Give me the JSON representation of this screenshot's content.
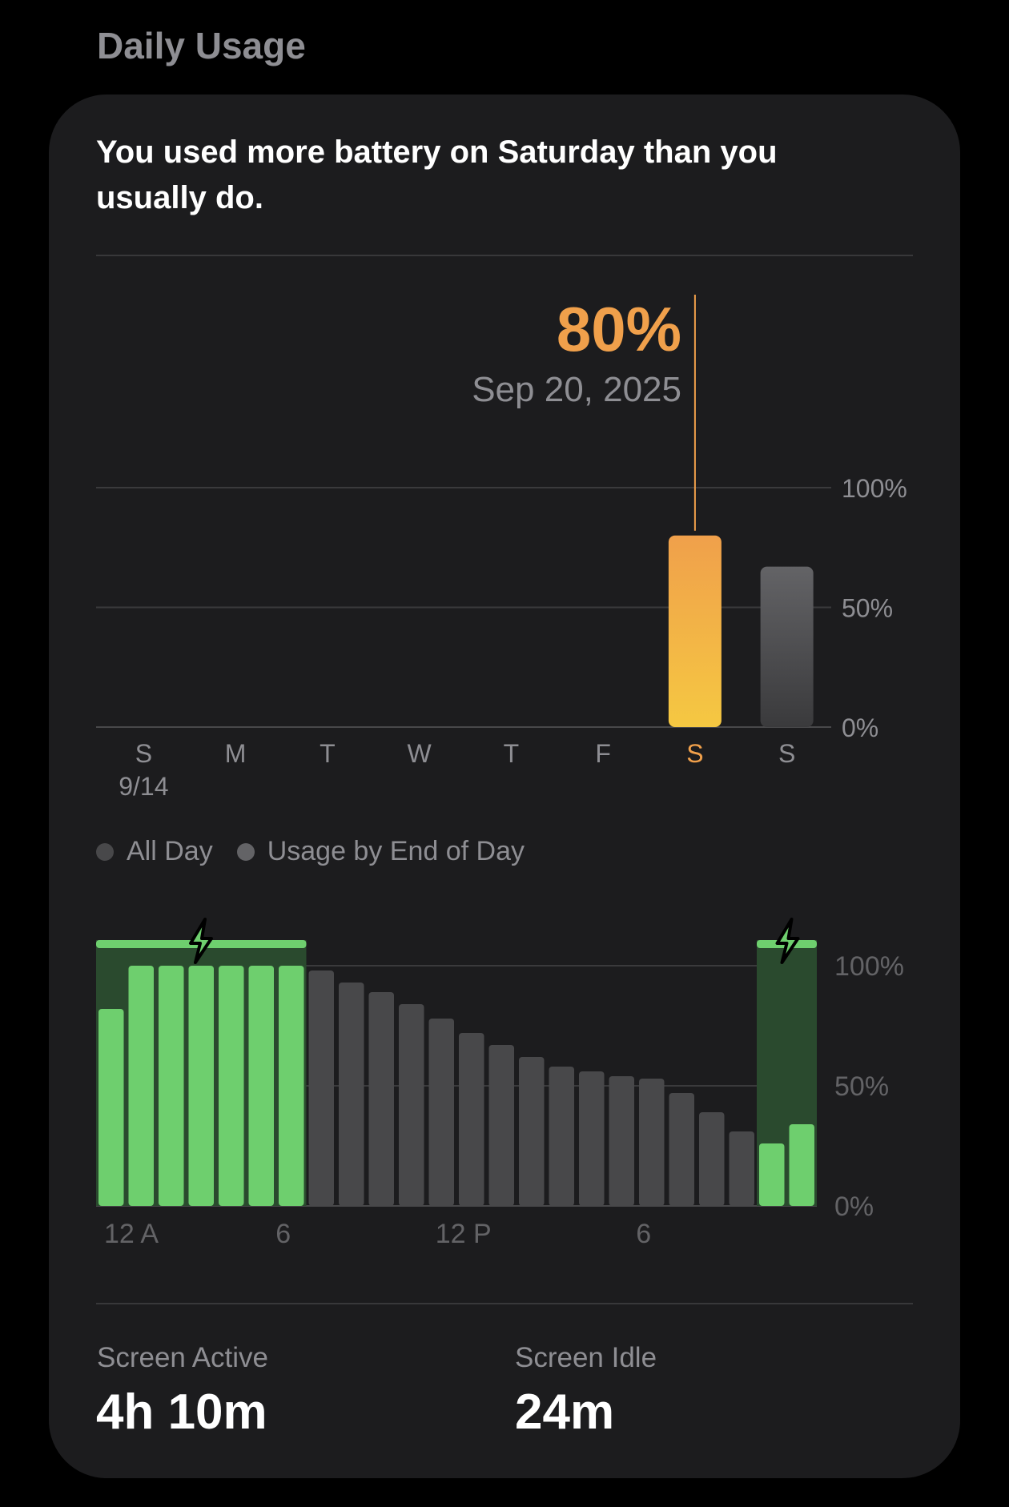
{
  "section_title": "Daily Usage",
  "headline": "You used more battery on Saturday than you usually do.",
  "callout": {
    "value": "80%",
    "date": "Sep 20, 2025"
  },
  "colors": {
    "accent": "#f0a04b",
    "highlight_gradient": [
      "#f0a04b",
      "#f5c842"
    ],
    "gray_bar": "#636366",
    "charge_green": "#6ecf6e",
    "card": "#1c1c1e"
  },
  "legend": [
    {
      "label": "All Day",
      "color": "#48484a"
    },
    {
      "label": "Usage by End of Day",
      "color": "#636366"
    }
  ],
  "stats": [
    {
      "label": "Screen Active",
      "value": "4h 10m"
    },
    {
      "label": "Screen Idle",
      "value": "24m"
    }
  ],
  "chart_data": [
    {
      "type": "bar",
      "categories": [
        "S",
        "M",
        "T",
        "W",
        "T",
        "F",
        "S",
        "S"
      ],
      "sub_labels": [
        "9/14",
        "",
        "",
        "",
        "",
        "",
        "",
        ""
      ],
      "values": [
        0,
        0,
        0,
        0,
        0,
        0,
        80,
        67
      ],
      "highlight_index": 6,
      "ylim": [
        0,
        100
      ],
      "y_ticks": [
        "100%",
        "50%",
        "0%"
      ],
      "y_tick_values": [
        100,
        50,
        0
      ]
    },
    {
      "type": "bar",
      "x_tick_labels": [
        "12 A",
        "6",
        "12 P",
        "6"
      ],
      "x_tick_hours": [
        0,
        6,
        12,
        18
      ],
      "values": [
        82,
        100,
        100,
        100,
        100,
        100,
        100,
        98,
        93,
        89,
        84,
        78,
        72,
        67,
        62,
        58,
        56,
        54,
        53,
        47,
        39,
        31,
        26,
        34
      ],
      "charging": [
        true,
        true,
        true,
        true,
        true,
        true,
        true,
        false,
        false,
        false,
        false,
        false,
        false,
        false,
        false,
        false,
        false,
        false,
        false,
        false,
        false,
        false,
        true,
        true
      ],
      "ylim": [
        0,
        100
      ],
      "y_ticks": [
        "100%",
        "50%",
        "0%"
      ],
      "y_tick_values": [
        100,
        50,
        0
      ]
    }
  ]
}
